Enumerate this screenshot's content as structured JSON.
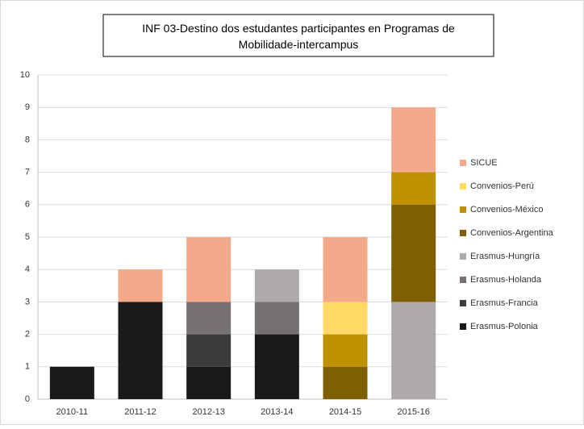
{
  "chart_data": {
    "type": "stacked_bar",
    "title": "INF 03-Destino dos estudantes participantes en Programas de Mobilidade-intercampus",
    "categories": [
      "2010-11",
      "2011-12",
      "2012-13",
      "2013-14",
      "2014-15",
      "2015-16"
    ],
    "series": [
      {
        "name": "Erasmus-Polonia",
        "color": "#1a1a1a",
        "values": [
          1,
          3,
          1,
          2,
          0,
          0
        ]
      },
      {
        "name": "Erasmus-Francia",
        "color": "#3b3b3b",
        "values": [
          0,
          0,
          1,
          0,
          0,
          0
        ]
      },
      {
        "name": "Erasmus-Holanda",
        "color": "#767171",
        "values": [
          0,
          0,
          1,
          1,
          0,
          0
        ]
      },
      {
        "name": "Erasmus-Hungría",
        "color": "#aeaaaa",
        "values": [
          0,
          0,
          0,
          1,
          0,
          3
        ]
      },
      {
        "name": "Convenios-Argentina",
        "color": "#7f6000",
        "values": [
          0,
          0,
          0,
          0,
          1,
          3
        ]
      },
      {
        "name": "Convenios-México",
        "color": "#bf9000",
        "values": [
          0,
          0,
          0,
          0,
          1,
          1
        ]
      },
      {
        "name": "Convenios-Perú",
        "color": "#ffd966",
        "values": [
          0,
          0,
          0,
          0,
          1,
          0
        ]
      },
      {
        "name": "SICUE",
        "color": "#f4a98a",
        "values": [
          0,
          1,
          2,
          0,
          2,
          2
        ]
      }
    ],
    "ylim": [
      0,
      10
    ],
    "yticks": [
      0,
      1,
      2,
      3,
      4,
      5,
      6,
      7,
      8,
      9,
      10
    ],
    "grid": true,
    "legend": "right"
  }
}
